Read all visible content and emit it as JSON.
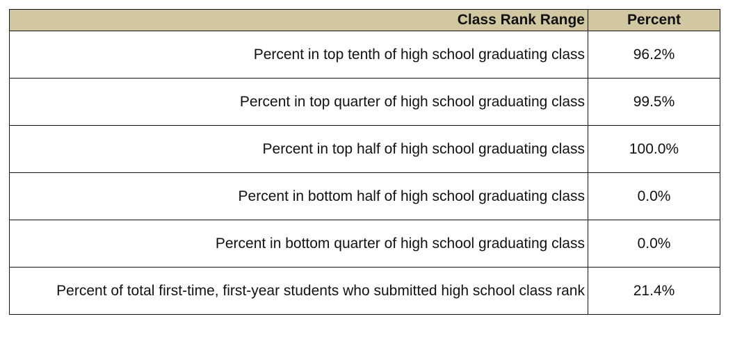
{
  "header_bg": "#d1c7a0",
  "table": {
    "columns": [
      "Class Rank Range",
      "Percent"
    ],
    "rows": [
      {
        "range": "Percent in top tenth of high school graduating class",
        "percent": "96.2%"
      },
      {
        "range": "Percent in top quarter of high school graduating class",
        "percent": "99.5%"
      },
      {
        "range": "Percent in top half of high school graduating class",
        "percent": "100.0%"
      },
      {
        "range": "Percent in bottom half of high school graduating class",
        "percent": "0.0%"
      },
      {
        "range": "Percent in bottom quarter of high school graduating class",
        "percent": "0.0%"
      },
      {
        "range": "Percent of total first-time, first-year students who submitted high school class rank",
        "percent": "21.4%"
      }
    ]
  }
}
